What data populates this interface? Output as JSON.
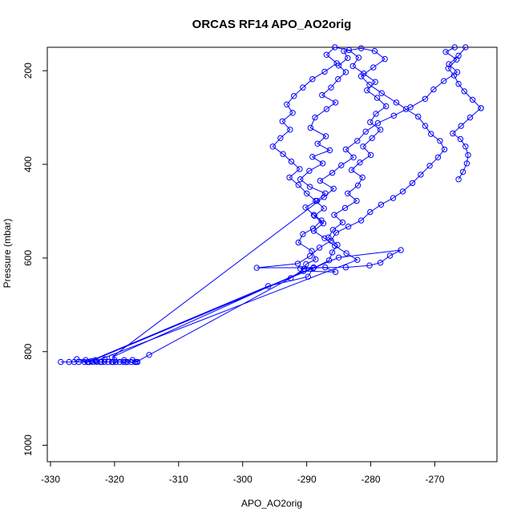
{
  "chart_data": {
    "type": "line",
    "title": "ORCAS RF14 APO_AO2orig",
    "xlabel": "APO_AO2orig",
    "ylabel": "Pressure (mbar)",
    "xlim": [
      -330.5,
      -260.3
    ],
    "ylim": [
      1035,
      150
    ],
    "y_reversed": true,
    "grid": false,
    "legend": "none",
    "marker": "open-circle",
    "color": "#0000ff",
    "x_ticks": [
      -330,
      -320,
      -310,
      -300,
      -290,
      -280,
      -270
    ],
    "y_ticks": [
      200,
      400,
      600,
      800,
      1000
    ],
    "series": [
      {
        "points": [
          [
            -328.4,
            822
          ],
          [
            -327.1,
            822
          ],
          [
            -326.3,
            822
          ],
          [
            -325.6,
            822
          ],
          [
            -324.7,
            822
          ],
          [
            -324.0,
            822
          ],
          [
            -323.4,
            822
          ],
          [
            -322.8,
            822
          ],
          [
            -322.2,
            822
          ],
          [
            -321.6,
            822
          ],
          [
            -321.0,
            822
          ],
          [
            -320.4,
            822
          ],
          [
            -319.8,
            822
          ],
          [
            -319.2,
            822
          ],
          [
            -318.6,
            822
          ],
          [
            -318.0,
            822
          ],
          [
            -317.4,
            822
          ],
          [
            -316.8,
            822
          ],
          [
            -316.4,
            822
          ],
          [
            -317.2,
            818
          ],
          [
            -318.5,
            818
          ],
          [
            -320.0,
            818
          ],
          [
            -321.5,
            816
          ],
          [
            -323.0,
            818
          ],
          [
            -324.5,
            818
          ],
          [
            -325.9,
            816
          ],
          [
            -324.0,
            822
          ],
          [
            -322.0,
            822
          ],
          [
            -320.2,
            822
          ],
          [
            -318.3,
            822
          ],
          [
            -316.6,
            822
          ],
          [
            -314.6,
            807
          ],
          [
            -292.5,
            643
          ],
          [
            -290.4,
            623
          ],
          [
            -290.1,
            613
          ],
          [
            -288.6,
            603
          ],
          [
            -289.2,
            585
          ],
          [
            -291.3,
            567
          ],
          [
            -290.6,
            549
          ],
          [
            -289.0,
            537
          ],
          [
            -287.7,
            520
          ],
          [
            -288.9,
            508
          ],
          [
            -290.2,
            492
          ],
          [
            -288.4,
            478
          ],
          [
            -287.1,
            462
          ],
          [
            -289.5,
            448
          ],
          [
            -291.0,
            432
          ],
          [
            -289.6,
            414
          ],
          [
            -287.5,
            398
          ],
          [
            -289.1,
            384
          ],
          [
            -286.4,
            370
          ],
          [
            -288.3,
            356
          ],
          [
            -287.0,
            340
          ],
          [
            -289.4,
            322
          ],
          [
            -288.7,
            300
          ],
          [
            -286.9,
            282
          ],
          [
            -285.5,
            268
          ],
          [
            -287.6,
            252
          ],
          [
            -286.2,
            236
          ],
          [
            -285.1,
            218
          ],
          [
            -283.9,
            203
          ],
          [
            -285.0,
            189
          ],
          [
            -283.6,
            173
          ],
          [
            -284.2,
            158
          ],
          [
            -281.5,
            152
          ],
          [
            -279.4,
            158
          ],
          [
            -277.8,
            175
          ],
          [
            -279.6,
            193
          ],
          [
            -281.5,
            212
          ],
          [
            -280.2,
            230
          ],
          [
            -278.3,
            248
          ],
          [
            -276.0,
            268
          ],
          [
            -274.5,
            282
          ],
          [
            -272.6,
            298
          ],
          [
            -271.5,
            318
          ],
          [
            -270.6,
            335
          ],
          [
            -269.2,
            350
          ],
          [
            -268.5,
            368
          ],
          [
            -269.5,
            385
          ],
          [
            -270.8,
            403
          ],
          [
            -272.2,
            422
          ],
          [
            -273.5,
            440
          ],
          [
            -275.0,
            458
          ],
          [
            -276.5,
            472
          ],
          [
            -278.4,
            486
          ],
          [
            -280.1,
            502
          ],
          [
            -281.5,
            520
          ],
          [
            -283.5,
            533
          ],
          [
            -285.4,
            546
          ],
          [
            -286.2,
            563
          ],
          [
            -288.0,
            578
          ],
          [
            -289.5,
            596
          ],
          [
            -291.4,
            612
          ],
          [
            -297.8,
            621
          ],
          [
            -283.9,
            620
          ],
          [
            -280.2,
            616
          ],
          [
            -278.5,
            610
          ],
          [
            -277.0,
            595
          ],
          [
            -275.3,
            583
          ],
          [
            -285.0,
            599
          ],
          [
            -323.6,
            820
          ],
          [
            -288.9,
            620
          ],
          [
            -291.0,
            623
          ],
          [
            -287.1,
            620
          ],
          [
            -285.5,
            630
          ],
          [
            -290.5,
            628
          ],
          [
            -320.4,
            812
          ],
          [
            -287.3,
            470
          ],
          [
            -285.8,
            452
          ],
          [
            -287.9,
            435
          ],
          [
            -286.0,
            418
          ],
          [
            -284.6,
            402
          ],
          [
            -282.7,
            385
          ],
          [
            -283.9,
            368
          ],
          [
            -282.1,
            350
          ],
          [
            -280.8,
            330
          ],
          [
            -278.9,
            312
          ],
          [
            -276.4,
            296
          ],
          [
            -273.8,
            278
          ],
          [
            -271.5,
            260
          ],
          [
            -270.2,
            240
          ],
          [
            -268.6,
            222
          ],
          [
            -266.5,
            203
          ],
          [
            -267.8,
            186
          ],
          [
            -266.3,
            168
          ],
          [
            -265.2,
            150
          ]
        ]
      },
      {
        "points": [
          [
            -324.2,
            822
          ],
          [
            -296.0,
            660
          ],
          [
            -289.8,
            640
          ],
          [
            -289.0,
            622
          ],
          [
            -286.5,
            605
          ],
          [
            -286.0,
            588
          ],
          [
            -285.2,
            572
          ],
          [
            -286.6,
            556
          ],
          [
            -285.9,
            540
          ],
          [
            -284.4,
            524
          ],
          [
            -285.7,
            508
          ],
          [
            -284.0,
            493
          ],
          [
            -282.2,
            478
          ],
          [
            -283.6,
            462
          ],
          [
            -282.0,
            445
          ],
          [
            -281.3,
            428
          ],
          [
            -283.0,
            412
          ],
          [
            -281.7,
            396
          ],
          [
            -280.0,
            380
          ],
          [
            -281.2,
            362
          ],
          [
            -279.8,
            344
          ],
          [
            -278.5,
            326
          ],
          [
            -280.1,
            310
          ],
          [
            -279.2,
            292
          ],
          [
            -277.6,
            276
          ],
          [
            -279.0,
            258
          ],
          [
            -280.6,
            242
          ],
          [
            -279.3,
            224
          ],
          [
            -281.1,
            206
          ],
          [
            -282.8,
            190
          ],
          [
            -281.9,
            172
          ],
          [
            -283.4,
            156
          ],
          [
            -285.6,
            150
          ],
          [
            -286.9,
            166
          ],
          [
            -285.3,
            184
          ],
          [
            -287.2,
            202
          ],
          [
            -289.1,
            218
          ],
          [
            -290.6,
            236
          ],
          [
            -292.0,
            254
          ],
          [
            -293.1,
            272
          ],
          [
            -292.2,
            290
          ],
          [
            -293.8,
            308
          ],
          [
            -292.6,
            326
          ],
          [
            -294.1,
            344
          ],
          [
            -295.3,
            362
          ],
          [
            -293.7,
            378
          ],
          [
            -292.4,
            394
          ],
          [
            -291.1,
            410
          ],
          [
            -292.7,
            428
          ],
          [
            -291.3,
            444
          ],
          [
            -290.0,
            462
          ],
          [
            -288.6,
            478
          ],
          [
            -287.3,
            494
          ],
          [
            -288.8,
            510
          ],
          [
            -287.4,
            526
          ],
          [
            -288.9,
            542
          ],
          [
            -287.2,
            558
          ],
          [
            -285.6,
            574
          ],
          [
            -283.8,
            590
          ],
          [
            -282.1,
            604
          ],
          [
            -322.9,
            820
          ]
        ]
      },
      {
        "points": [
          [
            -262.8,
            280
          ],
          [
            -264.1,
            262
          ],
          [
            -265.4,
            244
          ],
          [
            -266.3,
            228
          ],
          [
            -267.0,
            210
          ],
          [
            -267.9,
            195
          ],
          [
            -266.6,
            176
          ],
          [
            -268.3,
            160
          ],
          [
            -266.9,
            150
          ]
        ]
      },
      {
        "points": [
          [
            -262.8,
            280
          ],
          [
            -264.5,
            300
          ],
          [
            -265.9,
            318
          ],
          [
            -267.2,
            334
          ],
          [
            -266.0,
            346
          ],
          [
            -265.2,
            362
          ],
          [
            -264.8,
            380
          ],
          [
            -265.0,
            398
          ],
          [
            -265.6,
            416
          ],
          [
            -266.3,
            432
          ]
        ]
      }
    ]
  }
}
